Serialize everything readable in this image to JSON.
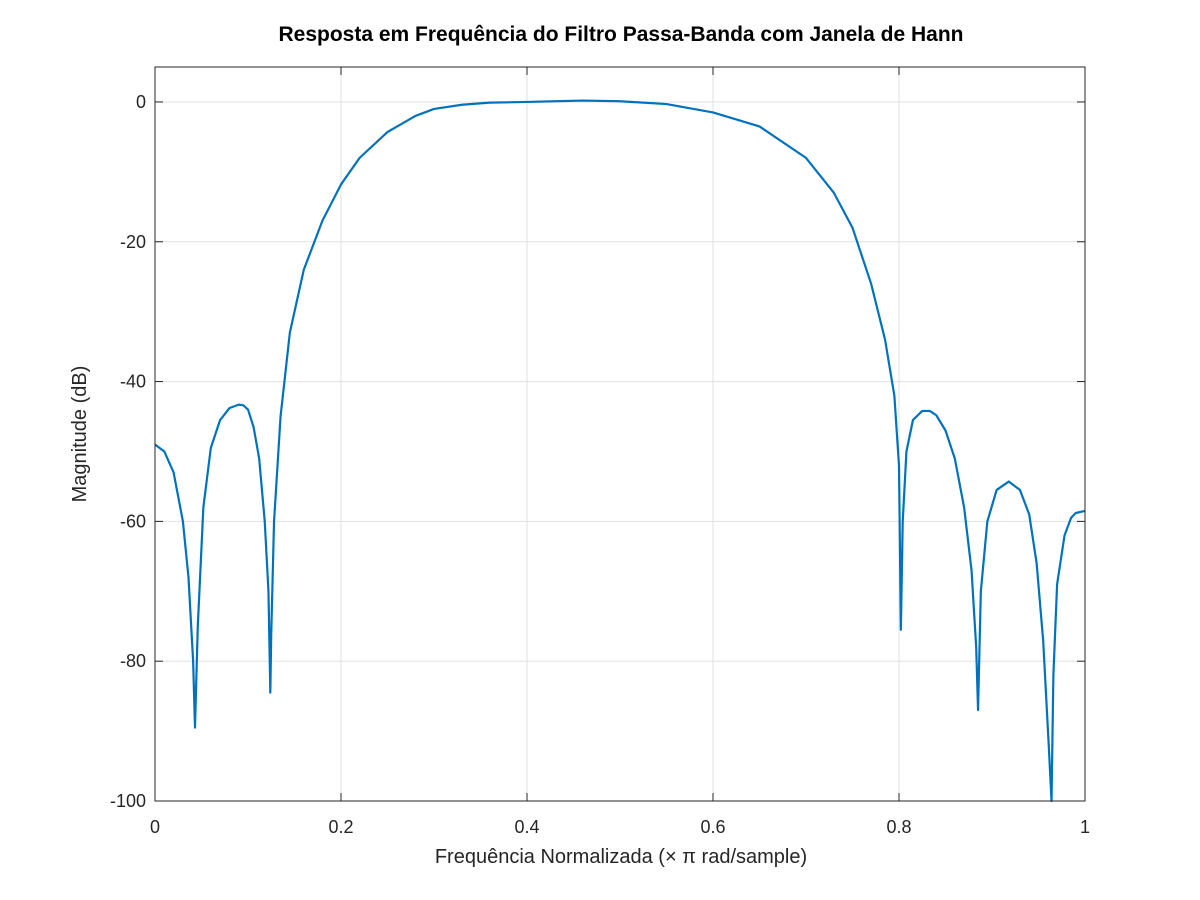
{
  "chart_data": {
    "type": "line",
    "title": "Resposta em Frequência do Filtro Passa-Banda com Janela de Hann",
    "xlabel": "Frequência Normalizada (× π rad/sample)",
    "ylabel": "Magnitude (dB)",
    "xlim": [
      0,
      1
    ],
    "ylim": [
      -100,
      5
    ],
    "xticks": [
      0,
      0.2,
      0.4,
      0.6,
      0.8,
      1
    ],
    "xtick_labels": [
      "0",
      "0.2",
      "0.4",
      "0.6",
      "0.8",
      "1"
    ],
    "yticks": [
      0,
      -20,
      -40,
      -60,
      -80,
      -100
    ],
    "ytick_labels": [
      "0",
      "-20",
      "-40",
      "-60",
      "-80",
      "-100"
    ],
    "grid": true,
    "color": "#0072bd",
    "series": [
      {
        "x": [
          0,
          0.01,
          0.02,
          0.03,
          0.036,
          0.041,
          0.043,
          0.046,
          0.052,
          0.06,
          0.07,
          0.08,
          0.09,
          0.095,
          0.1,
          0.106,
          0.112,
          0.118,
          0.122,
          0.124,
          0.125,
          0.128,
          0.135,
          0.145,
          0.16,
          0.18,
          0.2,
          0.22,
          0.25,
          0.28,
          0.3,
          0.33,
          0.36,
          0.4,
          0.43,
          0.46,
          0.5,
          0.55,
          0.6,
          0.65,
          0.7,
          0.73,
          0.75,
          0.77,
          0.785,
          0.795,
          0.8,
          0.802,
          0.804,
          0.808,
          0.815,
          0.825,
          0.833,
          0.84,
          0.85,
          0.86,
          0.87,
          0.878,
          0.883,
          0.885,
          0.888,
          0.895,
          0.905,
          0.918,
          0.93,
          0.94,
          0.948,
          0.955,
          0.961,
          0.964,
          0.966,
          0.97,
          0.978,
          0.985,
          0.99,
          1.0
        ],
        "y": [
          -49,
          -50,
          -53,
          -60,
          -68,
          -80,
          -89.5,
          -75,
          -58,
          -49.5,
          -45.5,
          -43.8,
          -43.3,
          -43.4,
          -44,
          -46.5,
          -51,
          -60,
          -70,
          -84.5,
          -76,
          -60,
          -45,
          -33,
          -24,
          -17,
          -11.8,
          -8,
          -4.3,
          -2,
          -1,
          -0.4,
          -0.1,
          0,
          0.1,
          0.2,
          0.1,
          -0.3,
          -1.5,
          -3.5,
          -8,
          -13,
          -18,
          -26,
          -34,
          -42,
          -52,
          -75.5,
          -60,
          -50,
          -45.5,
          -44.2,
          -44.2,
          -44.8,
          -47,
          -51,
          -58,
          -67,
          -78,
          -87,
          -70,
          -60,
          -55.5,
          -54.3,
          -55.5,
          -59,
          -66,
          -77,
          -92,
          -100,
          -82,
          -69,
          -62,
          -59.5,
          -58.8,
          -58.5
        ]
      }
    ]
  }
}
